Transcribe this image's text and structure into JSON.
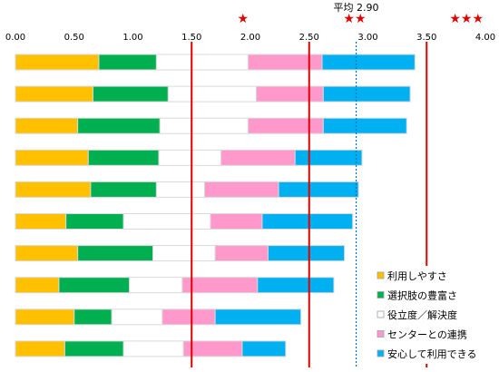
{
  "chart_data": {
    "type": "bar",
    "stacked": true,
    "orientation": "horizontal",
    "xlim": [
      0,
      4
    ],
    "xticks": [
      "0.00",
      "0.50",
      "1.00",
      "1.50",
      "2.00",
      "2.50",
      "3.00",
      "3.50",
      "4.00"
    ],
    "grid": false,
    "legend_position": "bottom-right",
    "series": [
      {
        "name": "利用しやすさ",
        "color": "#ffc000",
        "values": [
          0.71,
          0.66,
          0.53,
          0.62,
          0.64,
          0.43,
          0.53,
          0.37,
          0.5,
          0.42
        ]
      },
      {
        "name": "選択肢の豊富さ",
        "color": "#00b050",
        "values": [
          0.49,
          0.64,
          0.7,
          0.6,
          0.56,
          0.49,
          0.64,
          0.6,
          0.32,
          0.5
        ]
      },
      {
        "name": "役立度／解決度",
        "color": "#ffffff",
        "values": [
          0.78,
          0.75,
          0.75,
          0.53,
          0.41,
          0.74,
          0.53,
          0.45,
          0.43,
          0.51
        ]
      },
      {
        "name": "センターとの連携",
        "color": "#ff99cc",
        "values": [
          0.63,
          0.57,
          0.64,
          0.63,
          0.63,
          0.44,
          0.45,
          0.64,
          0.45,
          0.5
        ]
      },
      {
        "name": "安心して利用できる",
        "color": "#00b0f0",
        "values": [
          0.79,
          0.74,
          0.71,
          0.57,
          0.68,
          0.77,
          0.65,
          0.65,
          0.73,
          0.37
        ]
      }
    ],
    "reference_lines": [
      {
        "value": 1.5,
        "color": "#e00000",
        "style": "solid"
      },
      {
        "value": 2.5,
        "color": "#e00000",
        "style": "solid"
      },
      {
        "value": 3.5,
        "color": "#e00000",
        "style": "solid"
      },
      {
        "value": 2.9,
        "color": "#0070c0",
        "style": "dotted"
      }
    ],
    "average": {
      "label": "平均 2.90",
      "value": 2.9
    },
    "stars": [
      {
        "text": "★",
        "value": 2.0
      },
      {
        "text": "★★",
        "value": 3.0
      },
      {
        "text": "★★★",
        "value": 4.0
      }
    ]
  }
}
